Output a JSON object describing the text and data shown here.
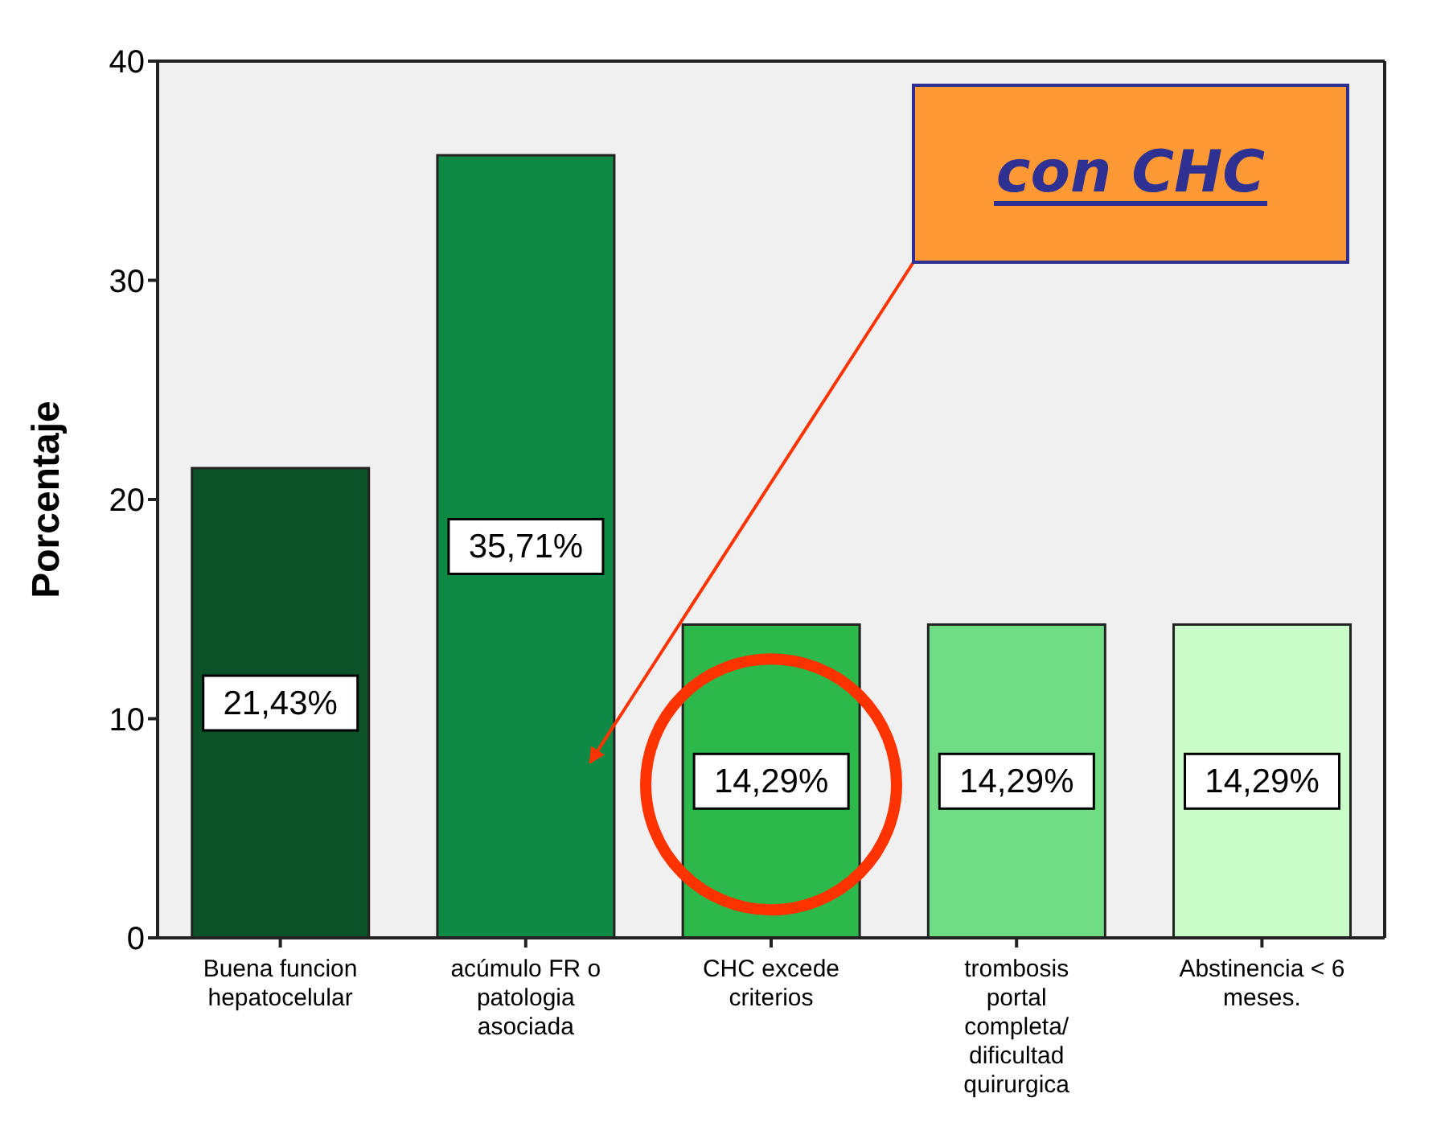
{
  "chart_data": {
    "type": "bar",
    "ylabel": "Porcentaje",
    "categories": [
      "Buena funcion hepatocelular",
      "acúmulo FR o patologia asociada",
      "CHC excede criterios",
      "trombosis portal completa/ dificultad quirurgica",
      "Abstinencia < 6 meses."
    ],
    "values": [
      21.43,
      35.71,
      14.29,
      14.29,
      14.29
    ],
    "colors": [
      "#0b5229",
      "#0f8a45",
      "#2db84b",
      "#70dc84",
      "#c9fcc8"
    ],
    "value_labels": [
      "21,43%",
      "35,71%",
      "14,29%",
      "14,29%",
      "14,29%"
    ],
    "ylim": [
      0,
      40
    ],
    "yticks": [
      0,
      10,
      20,
      30,
      40
    ],
    "annotations": [
      "con CHC"
    ]
  }
}
